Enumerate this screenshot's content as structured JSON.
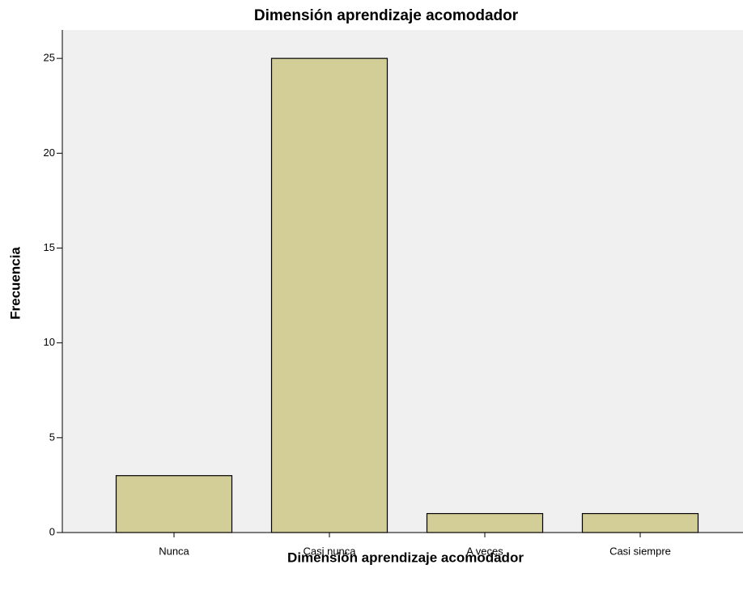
{
  "chart_data": {
    "type": "bar",
    "title": "Dimensión aprendizaje acomodador",
    "x_label": "Dimensión aprendizaje acomodador",
    "y_label": "Frecuencia",
    "categories": [
      "Nunca",
      "Casi nunca",
      "A veces",
      "Casi siempre"
    ],
    "values": [
      3,
      25,
      1,
      1
    ],
    "color": "#d3ce97",
    "ylim": [
      0,
      26.5
    ],
    "yticks": [
      0,
      5,
      10,
      15,
      20,
      25
    ],
    "grid": false
  }
}
